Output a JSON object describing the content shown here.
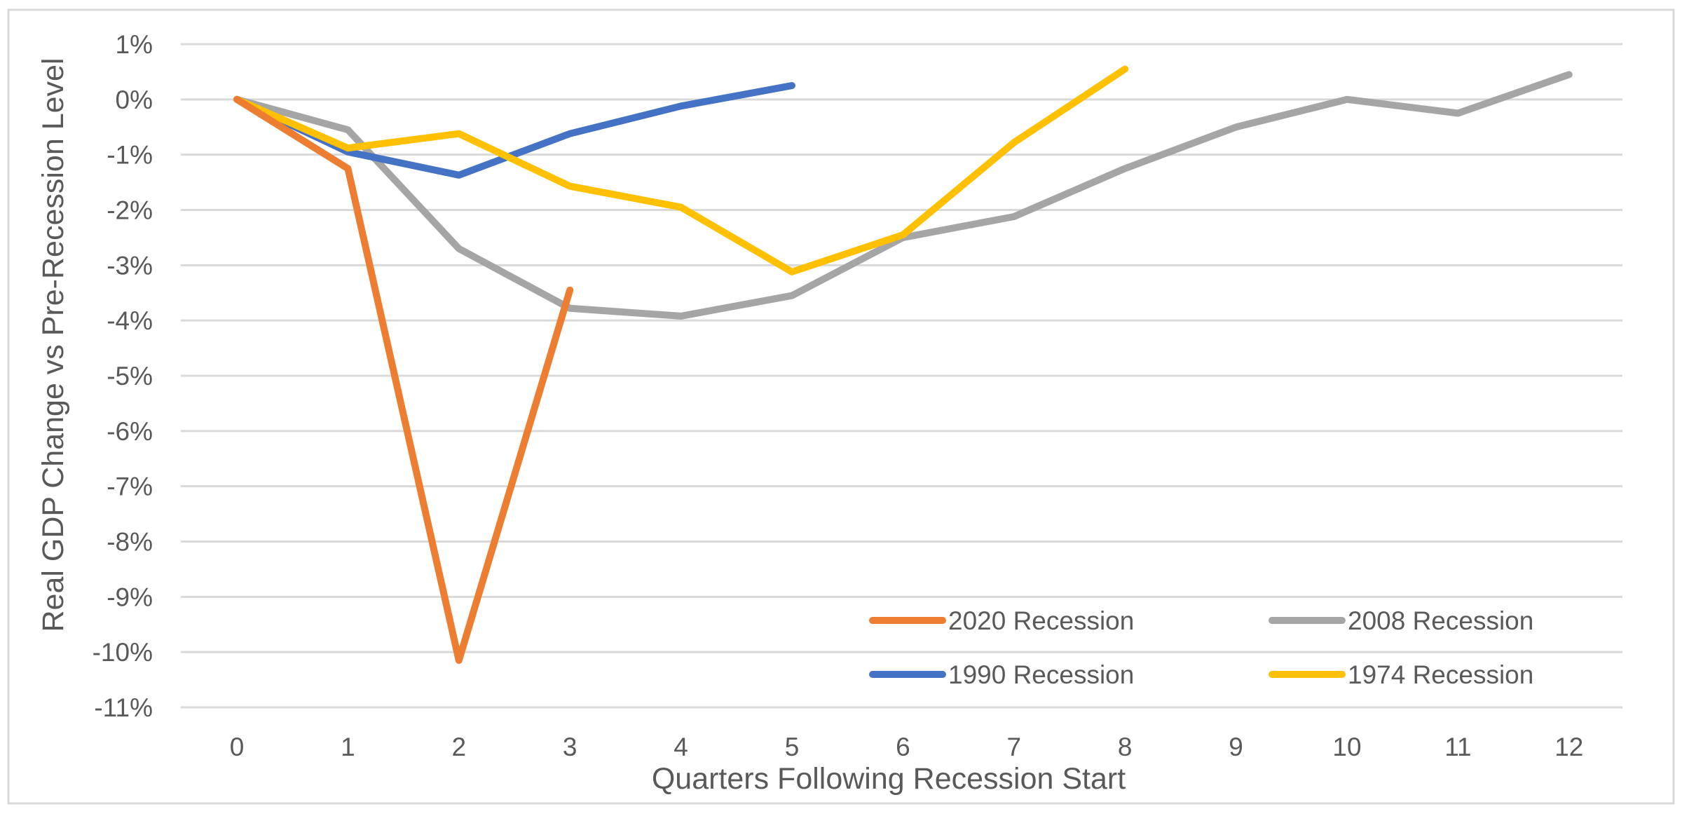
{
  "chart_data": {
    "type": "line",
    "xlabel": "Quarters Following Recession Start",
    "ylabel": "Real GDP Change  vs Pre-Recession Level",
    "x": [
      0,
      1,
      2,
      3,
      4,
      5,
      6,
      7,
      8,
      9,
      10,
      11,
      12
    ],
    "x_tick_labels": [
      "0",
      "1",
      "2",
      "3",
      "4",
      "5",
      "6",
      "7",
      "8",
      "9",
      "10",
      "11",
      "12"
    ],
    "y_tick_values": [
      1,
      0,
      -1,
      -2,
      -3,
      -4,
      -5,
      -6,
      -7,
      -8,
      -9,
      -10,
      -11
    ],
    "y_tick_labels": [
      "1%",
      "0%",
      "-1%",
      "-2%",
      "-3%",
      "-4%",
      "-5%",
      "-6%",
      "-7%",
      "-8%",
      "-9%",
      "-10%",
      "-11%"
    ],
    "ylim": [
      -11,
      1
    ],
    "xlim": [
      0,
      12
    ],
    "grid": "horizontal",
    "legend_position": "bottom-right",
    "series": [
      {
        "name": "2020 Recession",
        "color": "#ED7D31",
        "x": [
          0,
          1,
          2,
          3
        ],
        "values": [
          0,
          -1.25,
          -10.15,
          -3.45
        ]
      },
      {
        "name": "2008 Recession",
        "color": "#A5A5A5",
        "x": [
          0,
          1,
          2,
          3,
          4,
          5,
          6,
          7,
          8,
          9,
          10,
          11,
          12
        ],
        "values": [
          0,
          -0.55,
          -2.7,
          -3.78,
          -3.92,
          -3.55,
          -2.5,
          -2.12,
          -1.25,
          -0.5,
          0,
          -0.25,
          0.45
        ]
      },
      {
        "name": "1990 Recession",
        "color": "#4472C4",
        "x": [
          0,
          1,
          2,
          3,
          4,
          5
        ],
        "values": [
          0,
          -0.95,
          -1.37,
          -0.62,
          -0.12,
          0.25
        ]
      },
      {
        "name": "1974 Recession",
        "color": "#FFC000",
        "x": [
          0,
          1,
          2,
          3,
          4,
          5,
          6,
          7,
          8
        ],
        "values": [
          0,
          -0.88,
          -0.62,
          -1.57,
          -1.95,
          -3.12,
          -2.45,
          -0.78,
          0.55
        ]
      }
    ]
  }
}
